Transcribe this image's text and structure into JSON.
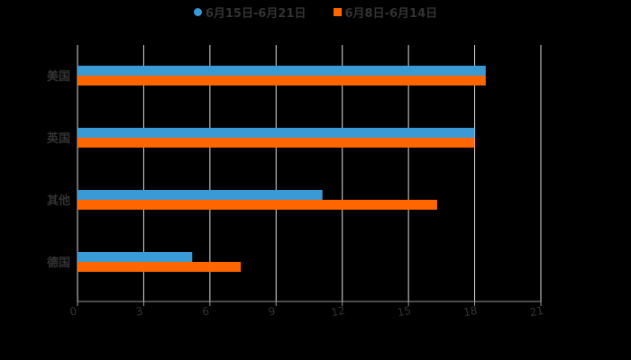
{
  "chart_data": {
    "type": "bar",
    "orientation": "horizontal",
    "categories": [
      "美国",
      "英国",
      "其他",
      "德国"
    ],
    "series": [
      {
        "name": "6月15日-6月21日",
        "color": "#3a9ad6",
        "marker": "circle",
        "values": [
          18.5,
          18.0,
          11.1,
          5.2
        ]
      },
      {
        "name": "6月8日-6月14日",
        "color": "#ff6600",
        "marker": "square",
        "values": [
          18.5,
          18.0,
          16.3,
          7.4
        ]
      }
    ],
    "title": "",
    "xlabel": "",
    "ylabel": "",
    "xlim": [
      0,
      21
    ],
    "xticks": [
      "0",
      "3",
      "6",
      "9",
      "12",
      "15",
      "18",
      "21"
    ],
    "grid": true,
    "legend_position": "top"
  },
  "legend": {
    "items": [
      {
        "label": "6月15日-6月21日",
        "color": "#3a9ad6"
      },
      {
        "label": "6月8日-6月14日",
        "color": "#ff6600"
      }
    ]
  },
  "colors": {
    "background": "#000000",
    "grid": "#dddddd",
    "axis": "#999999",
    "text": "#333333"
  }
}
